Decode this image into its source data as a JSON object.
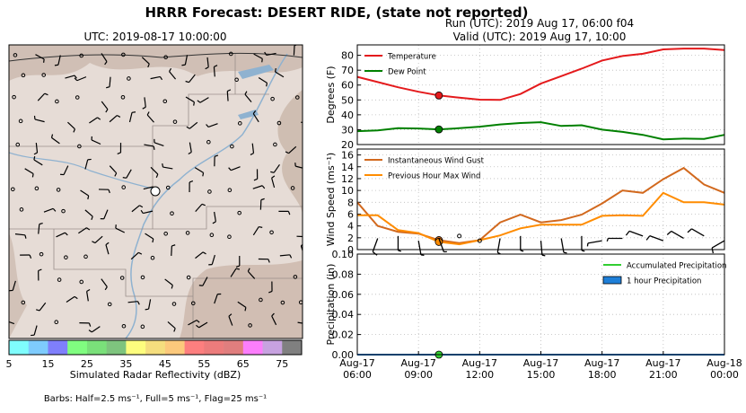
{
  "title": "HRRR Forecast: DESERT RIDE, (state not reported)",
  "map": {
    "title": "UTC: 2019-08-17 10:00:00",
    "colorbar": {
      "label": "Simulated Radar Reflectivity (dBZ)",
      "ticks": [
        "5",
        "15",
        "25",
        "35",
        "45",
        "55",
        "65",
        "75"
      ],
      "colors": [
        "#7ffdfd",
        "#7ecbfd",
        "#7f7ffb",
        "#80fd80",
        "#7ae07a",
        "#7ec47e",
        "#fdfd7e",
        "#f5de7e",
        "#fcc97c",
        "#fd7f7f",
        "#ec7c7c",
        "#e07e7e",
        "#fc7efc",
        "#c7a2e0",
        "#808080"
      ]
    },
    "barbs_note": "Barbs: Half=2.5 ms⁻¹, Full=5 ms⁻¹, Flag=25 ms⁻¹"
  },
  "run_title": "Run (UTC): 2019 Aug 17, 06:00 f04",
  "valid_title": "Valid (UTC): 2019 Aug 17, 10:00",
  "chart_data": [
    {
      "type": "line",
      "ylabel": "Degrees (F)",
      "ylim": [
        20,
        87
      ],
      "yticks": [
        20,
        30,
        40,
        50,
        60,
        70,
        80
      ],
      "legend": "top-left",
      "series": [
        {
          "name": "Temperature",
          "color": "#e41a1c",
          "x": [
            0,
            1,
            2,
            3,
            4,
            5,
            6,
            7,
            8,
            9,
            10,
            11,
            12,
            13,
            14,
            15,
            16,
            17,
            18
          ],
          "values": [
            65.5,
            62,
            58.5,
            55.5,
            53,
            51.5,
            50.2,
            50,
            54,
            61,
            66,
            71,
            76.5,
            79.5,
            81,
            84,
            84.5,
            84.5,
            83.5
          ]
        },
        {
          "name": "Dew Point",
          "color": "#008000",
          "x": [
            0,
            1,
            2,
            3,
            4,
            5,
            6,
            7,
            8,
            9,
            10,
            11,
            12,
            13,
            14,
            15,
            16,
            17,
            18
          ],
          "values": [
            29,
            29.5,
            31,
            30.8,
            30.2,
            31,
            32,
            33.5,
            34.5,
            35,
            32.5,
            33,
            30,
            28.5,
            26.5,
            23.5,
            24,
            23.8,
            26.5
          ]
        }
      ],
      "markers": [
        {
          "series": 0,
          "x": 4,
          "y": 53
        },
        {
          "series": 1,
          "x": 4,
          "y": 30.2
        }
      ]
    },
    {
      "type": "line",
      "ylabel": "Wind Speed (ms⁻¹)",
      "ylim": [
        0,
        17
      ],
      "yticks": [
        0,
        2,
        4,
        6,
        8,
        10,
        12,
        14,
        16
      ],
      "legend": "top-left",
      "series": [
        {
          "name": "Instantaneous Wind Gust",
          "color": "#d2691e",
          "x": [
            0,
            1,
            2,
            3,
            4,
            5,
            6,
            7,
            8,
            9,
            10,
            11,
            12,
            13,
            14,
            15,
            16,
            17,
            18
          ],
          "values": [
            8,
            4,
            3,
            2.7,
            1.6,
            1.1,
            1.6,
            4.6,
            5.9,
            4.6,
            5,
            5.9,
            7.8,
            10,
            9.6,
            11.9,
            13.8,
            11,
            9.6
          ]
        },
        {
          "name": "Previous Hour Max Wind",
          "color": "#ff8c00",
          "x": [
            0,
            1,
            2,
            3,
            4,
            5,
            6,
            7,
            8,
            9,
            10,
            11,
            12,
            13,
            14,
            15,
            16,
            17,
            18
          ],
          "values": [
            5.8,
            5.8,
            3.3,
            2.8,
            1.3,
            0.9,
            1.6,
            2.4,
            3.6,
            4.2,
            4.2,
            4.2,
            5.7,
            5.8,
            5.7,
            9.6,
            8,
            8,
            7.6
          ]
        }
      ],
      "markers": [
        {
          "series": 0,
          "x": 4,
          "y": 1.6
        },
        {
          "series": 1,
          "x": 4,
          "y": 1.3
        }
      ]
    },
    {
      "type": "area",
      "ylabel": "Precipitation (in)",
      "ylim": [
        0,
        0.1
      ],
      "yticks": [
        "0.00",
        "0.02",
        "0.04",
        "0.06",
        "0.08",
        "0.10"
      ],
      "legend": "top-right",
      "series": [
        {
          "name": "Accumulated Precipitation",
          "color": "#32cd32",
          "x": [
            0,
            1,
            2,
            3,
            4,
            5,
            6,
            7,
            8,
            9,
            10,
            11,
            12,
            13,
            14,
            15,
            16,
            17,
            18
          ],
          "values": [
            0,
            0,
            0,
            0,
            0,
            0,
            0,
            0,
            0,
            0,
            0,
            0,
            0,
            0,
            0,
            0,
            0,
            0,
            0
          ]
        },
        {
          "name": "1 hour Precipitation",
          "color": "#1e7fd8",
          "x": [
            0,
            1,
            2,
            3,
            4,
            5,
            6,
            7,
            8,
            9,
            10,
            11,
            12,
            13,
            14,
            15,
            16,
            17,
            18
          ],
          "values": [
            0,
            0,
            0,
            0,
            0,
            0,
            0,
            0,
            0,
            0,
            0,
            0,
            0,
            0,
            0,
            0,
            0,
            0,
            0
          ]
        }
      ],
      "markers": [
        {
          "series": 0,
          "x": 4,
          "y": 0
        }
      ],
      "xticks": [
        {
          "x": 0,
          "line1": "Aug-17",
          "line2": "06:00"
        },
        {
          "x": 3,
          "line1": "Aug-17",
          "line2": "09:00"
        },
        {
          "x": 6,
          "line1": "Aug-17",
          "line2": "12:00"
        },
        {
          "x": 9,
          "line1": "Aug-17",
          "line2": "15:00"
        },
        {
          "x": 12,
          "line1": "Aug-17",
          "line2": "18:00"
        },
        {
          "x": 15,
          "line1": "Aug-17",
          "line2": "21:00"
        },
        {
          "x": 18,
          "line1": "Aug-18",
          "line2": "00:00"
        }
      ]
    }
  ],
  "wind_barbs": [
    {
      "x": 1,
      "speed": 5,
      "dir": 200
    },
    {
      "x": 2,
      "speed": 2.5,
      "dir": 180
    },
    {
      "x": 3,
      "speed": 2.5,
      "dir": 170
    },
    {
      "x": 4,
      "speed": 2,
      "dir": 160
    },
    {
      "x": 5,
      "speed": 1,
      "dir": 0
    },
    {
      "x": 6,
      "speed": 1,
      "dir": 200
    },
    {
      "x": 7,
      "speed": 2.5,
      "dir": 190
    },
    {
      "x": 8,
      "speed": 2.5,
      "dir": 180
    },
    {
      "x": 9,
      "speed": 2.5,
      "dir": 175
    },
    {
      "x": 10,
      "speed": 2.5,
      "dir": 170
    },
    {
      "x": 11,
      "speed": 2.5,
      "dir": 180
    },
    {
      "x": 12,
      "speed": 2.5,
      "dir": 260
    },
    {
      "x": 13,
      "speed": 2.5,
      "dir": 270
    },
    {
      "x": 14,
      "speed": 5,
      "dir": 290
    },
    {
      "x": 15,
      "speed": 5,
      "dir": 290
    },
    {
      "x": 16,
      "speed": 5,
      "dir": 300
    },
    {
      "x": 17,
      "speed": 5,
      "dir": 300
    },
    {
      "x": 18,
      "speed": 5,
      "dir": 240
    }
  ]
}
